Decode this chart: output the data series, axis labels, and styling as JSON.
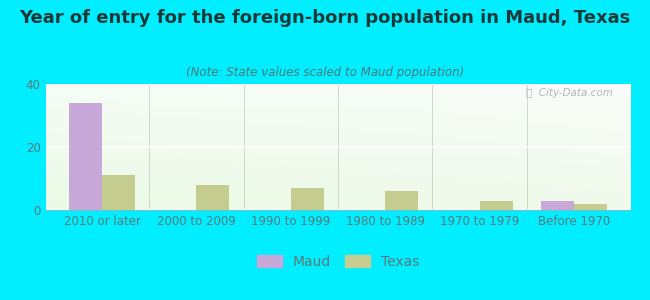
{
  "title": "Year of entry for the foreign-born population in Maud, Texas",
  "subtitle": "(Note: State values scaled to Maud population)",
  "categories": [
    "2010 or later",
    "2000 to 2009",
    "1990 to 1999",
    "1980 to 1989",
    "1970 to 1979",
    "Before 1970"
  ],
  "maud_values": [
    34,
    0,
    0,
    0,
    0,
    3
  ],
  "texas_values": [
    11,
    8,
    7,
    6,
    3,
    2
  ],
  "maud_color": "#c8a8d8",
  "texas_color": "#c5cc90",
  "background_color": "#00eeff",
  "ylim": [
    0,
    40
  ],
  "yticks": [
    0,
    20,
    40
  ],
  "bar_width": 0.35,
  "title_fontsize": 13,
  "subtitle_fontsize": 8.5,
  "tick_fontsize": 8.5,
  "legend_labels": [
    "Maud",
    "Texas"
  ],
  "watermark": "ⓘ  City-Data.com",
  "title_color": "#1a3a3a",
  "subtitle_color": "#4a7a7a",
  "tick_color": "#5a7a7a"
}
